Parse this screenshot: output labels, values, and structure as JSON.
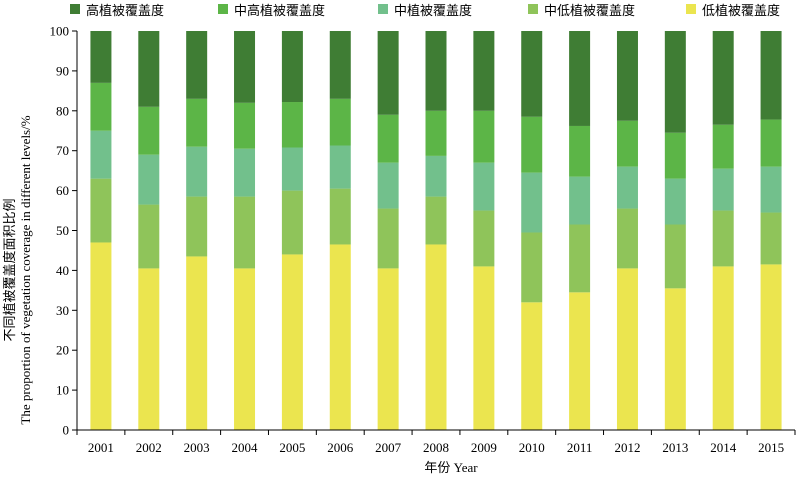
{
  "chart_data": {
    "type": "bar",
    "stacked": true,
    "categories": [
      "2001",
      "2002",
      "2003",
      "2004",
      "2005",
      "2006",
      "2007",
      "2008",
      "2009",
      "2010",
      "2011",
      "2012",
      "2013",
      "2014",
      "2015"
    ],
    "ylim": [
      0,
      100
    ],
    "yticks": [
      0,
      10,
      20,
      30,
      40,
      50,
      60,
      70,
      80,
      90,
      100
    ],
    "xlabel": "年份 Year",
    "ylabel": "不同植被覆盖度面积比例",
    "ylabel_en": "The proportion of vegetation coverage in different levels/%",
    "legend_position": "top",
    "series": [
      {
        "name": "低植被覆盖度",
        "color": "#ebe54f",
        "values": [
          47.0,
          40.5,
          43.5,
          40.5,
          44.0,
          46.5,
          40.5,
          46.5,
          41.0,
          32.0,
          34.5,
          40.5,
          35.5,
          41.0,
          41.5
        ]
      },
      {
        "name": "中低植被覆盖度",
        "color": "#8fc45a",
        "values": [
          16.0,
          16.0,
          15.0,
          18.0,
          16.0,
          14.0,
          15.0,
          12.0,
          14.0,
          17.5,
          17.0,
          15.0,
          16.0,
          14.0,
          13.0
        ]
      },
      {
        "name": "中植被覆盖度",
        "color": "#72c08c",
        "values": [
          12.0,
          12.5,
          12.5,
          12.0,
          10.8,
          10.8,
          11.5,
          10.2,
          12.0,
          15.0,
          12.0,
          10.5,
          11.5,
          10.5,
          11.5
        ]
      },
      {
        "name": "中高植被覆盖度",
        "color": "#5cb547",
        "values": [
          12.0,
          12.0,
          12.0,
          11.5,
          11.4,
          11.7,
          12.0,
          11.3,
          13.0,
          14.0,
          12.7,
          11.5,
          11.5,
          11.0,
          11.8
        ]
      },
      {
        "name": "高植被覆盖度",
        "color": "#3f7d34",
        "values": [
          13.0,
          19.0,
          17.0,
          18.0,
          17.8,
          17.0,
          21.0,
          20.0,
          20.0,
          21.5,
          23.8,
          22.5,
          25.5,
          23.5,
          22.2
        ]
      }
    ],
    "legend_order": [
      "高植被覆盖度",
      "中高植被覆盖度",
      "中植被覆盖度",
      "中低植被覆盖度",
      "低植被覆盖度"
    ]
  }
}
